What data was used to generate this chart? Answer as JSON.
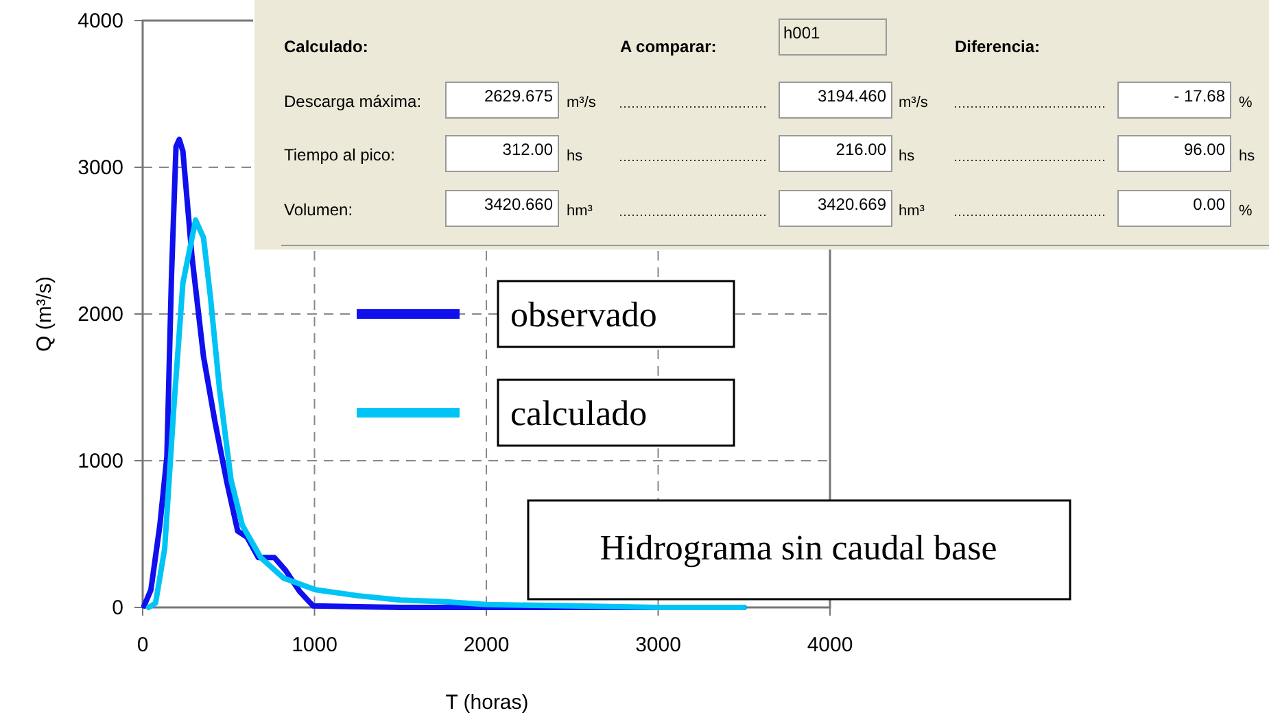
{
  "chart_data": [
    {
      "type": "line",
      "xlabel": "T (horas)",
      "ylabel": "Q (m³/s)",
      "xlim": [
        0,
        4000
      ],
      "ylim": [
        0,
        4000
      ],
      "xticks": [
        0,
        1000,
        2000,
        3000,
        4000
      ],
      "yticks": [
        0,
        1000,
        2000,
        3000,
        4000
      ],
      "grid": true,
      "legend": "center",
      "line_style": "solid",
      "marker": "none",
      "series": [
        {
          "name": "observado",
          "color": "#1010ee",
          "x": [
            8,
            48,
            100,
            141,
            168,
            194,
            213,
            234,
            287,
            354,
            420,
            487,
            553,
            607,
            673,
            766,
            833,
            913,
            992,
            1500,
            2000,
            2500,
            3000,
            3500
          ],
          "values": [
            10,
            120,
            560,
            1030,
            2270,
            3140,
            3190,
            3110,
            2390,
            1710,
            1270,
            870,
            520,
            480,
            340,
            340,
            250,
            110,
            10,
            0,
            0,
            0,
            0,
            0
          ]
        },
        {
          "name": "calculado",
          "color": "#00c4f5",
          "x": [
            35,
            75,
            128,
            180,
            234,
            308,
            354,
            394,
            447,
            514,
            580,
            687,
            820,
            1006,
            1250,
            1500,
            1750,
            2000,
            2500,
            3000,
            3500
          ],
          "values": [
            0,
            30,
            400,
            1340,
            2210,
            2640,
            2520,
            2120,
            1490,
            870,
            560,
            340,
            200,
            120,
            80,
            50,
            40,
            20,
            10,
            0,
            0
          ]
        }
      ],
      "annotations": [
        "Hidrograma sin caudal base"
      ]
    },
    {
      "type": "other",
      "annotations": [
        "Calculado:",
        "A comparar:",
        "h001",
        "Diferencia:",
        "Descarga máxima:",
        "2629.675",
        "m³/s",
        "3194.460",
        "m³/s",
        "- 17.68",
        "%",
        "Tiempo al pico:",
        "312.00",
        "hs",
        "216.00",
        "hs",
        "96.00",
        "hs",
        "Volumen:",
        "3420.660",
        "hm³",
        "3420.669",
        "hm³",
        "0.00",
        "%"
      ]
    }
  ]
}
